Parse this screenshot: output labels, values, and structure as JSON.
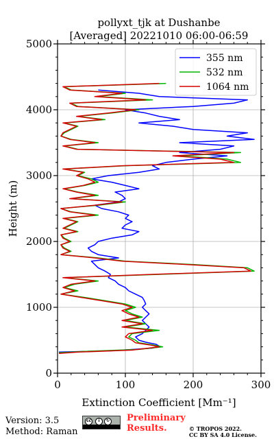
{
  "chart_data": {
    "type": "line",
    "title": "pollyxt_tjk at Dushanbe",
    "subtitle": "[Averaged] 20221010 06:00-06:59",
    "xlabel": "Extinction Coefficient [Mm⁻¹]",
    "ylabel": "Height (m)",
    "xlim": [
      0,
      300
    ],
    "ylim": [
      0,
      5000
    ],
    "xticks": [
      0,
      100,
      200,
      300
    ],
    "yticks": [
      0,
      1000,
      2000,
      3000,
      4000,
      5000
    ],
    "grid": true,
    "legend_position": "top-right",
    "series": [
      {
        "name": "355 nm",
        "color": "#0000ff",
        "y": [
          320,
          340,
          380,
          410,
          440,
          470,
          500,
          550,
          600,
          650,
          700,
          750,
          800,
          850,
          900,
          950,
          1000,
          1050,
          1100,
          1150,
          1200,
          1250,
          1300,
          1350,
          1400,
          1450,
          1500,
          1550,
          1600,
          1650,
          1700,
          1750,
          1800,
          1850,
          1900,
          1950,
          2000,
          2050,
          2100,
          2150,
          2200,
          2250,
          2300,
          2350,
          2400,
          2450,
          2500,
          2550,
          2600,
          2650,
          2700,
          2750,
          2800,
          2850,
          2900,
          2950,
          3000,
          3050,
          3100,
          3150,
          3200,
          3250,
          3300,
          3350,
          3400,
          3450,
          3500,
          3550,
          3600,
          3650,
          3700,
          3750,
          3800,
          3850,
          3900,
          3950,
          4000,
          4050,
          4100,
          4150,
          4200,
          4250,
          4300
        ],
        "x": [
          2,
          80,
          140,
          150,
          145,
          130,
          120,
          115,
          125,
          130,
          135,
          130,
          125,
          130,
          135,
          130,
          125,
          130,
          128,
          125,
          115,
          105,
          100,
          90,
          85,
          75,
          78,
          70,
          60,
          55,
          50,
          90,
          60,
          50,
          45,
          55,
          60,
          80,
          110,
          120,
          95,
          100,
          110,
          100,
          105,
          90,
          65,
          55,
          90,
          100,
          95,
          85,
          120,
          100,
          80,
          50,
          75,
          120,
          150,
          140,
          160,
          200,
          250,
          180,
          240,
          260,
          180,
          290,
          250,
          280,
          200,
          170,
          120,
          180,
          150,
          130,
          100,
          200,
          260,
          280,
          150,
          120,
          60
        ]
      },
      {
        "name": "532 nm",
        "color": "#00b400",
        "y": [
          310,
          330,
          360,
          400,
          430,
          460,
          500,
          550,
          600,
          650,
          700,
          750,
          800,
          850,
          900,
          950,
          1000,
          1050,
          1100,
          1150,
          1200,
          1250,
          1300,
          1350,
          1400,
          1450,
          1500,
          1550,
          1600,
          1650,
          1700,
          1750,
          1800,
          1850,
          1900,
          1950,
          2000,
          2050,
          2100,
          2150,
          2200,
          2250,
          2300,
          2350,
          2400,
          2450,
          2500,
          2550,
          2600,
          2650,
          2700,
          2750,
          2800,
          2850,
          2900,
          2950,
          3000,
          3050,
          3100,
          3150,
          3200,
          3250,
          3300,
          3350,
          3400,
          3450,
          3500,
          3550,
          3600,
          3650,
          3700,
          3750,
          3800,
          3850,
          3900,
          3950,
          4000,
          4050,
          4100,
          4150,
          4200,
          4250,
          4300,
          4350,
          4400
        ],
        "x": [
          2,
          40,
          120,
          155,
          140,
          120,
          115,
          105,
          110,
          150,
          100,
          130,
          100,
          125,
          110,
          100,
          115,
          100,
          70,
          40,
          5,
          30,
          10,
          25,
          60,
          10,
          150,
          290,
          280,
          200,
          100,
          60,
          5,
          20,
          10,
          5,
          20,
          10,
          5,
          30,
          10,
          20,
          30,
          10,
          60,
          20,
          5,
          60,
          100,
          20,
          60,
          30,
          10,
          40,
          60,
          50,
          30,
          40,
          10,
          100,
          270,
          250,
          180,
          270,
          30,
          10,
          60,
          20,
          5,
          10,
          20,
          30,
          10,
          70,
          30,
          80,
          120,
          30,
          20,
          140,
          60,
          100,
          20,
          10,
          160
        ]
      },
      {
        "name": "1064 nm",
        "color": "#d40000",
        "y": [
          300,
          320,
          350,
          400,
          430,
          460,
          500,
          550,
          600,
          650,
          700,
          750,
          800,
          850,
          900,
          950,
          1000,
          1050,
          1100,
          1150,
          1200,
          1250,
          1300,
          1350,
          1400,
          1450,
          1500,
          1550,
          1600,
          1650,
          1700,
          1750,
          1800,
          1850,
          1900,
          1950,
          2000,
          2050,
          2100,
          2150,
          2200,
          2250,
          2300,
          2350,
          2400,
          2450,
          2500,
          2550,
          2600,
          2650,
          2700,
          2750,
          2800,
          2850,
          2900,
          2950,
          3000,
          3050,
          3100,
          3150,
          3200,
          3250,
          3300,
          3350,
          3400,
          3450,
          3500,
          3550,
          3600,
          3650,
          3700,
          3750,
          3800,
          3850,
          3900,
          3950,
          4000,
          4050,
          4100,
          4150,
          4200,
          4250,
          4300,
          4350,
          4400
        ],
        "x": [
          2,
          30,
          110,
          150,
          135,
          115,
          110,
          100,
          105,
          140,
          95,
          125,
          95,
          120,
          105,
          95,
          110,
          95,
          65,
          35,
          5,
          25,
          8,
          20,
          55,
          8,
          140,
          285,
          275,
          190,
          95,
          55,
          5,
          18,
          8,
          5,
          18,
          8,
          5,
          28,
          8,
          18,
          28,
          8,
          55,
          18,
          5,
          55,
          95,
          18,
          55,
          28,
          8,
          38,
          55,
          45,
          28,
          38,
          8,
          95,
          260,
          240,
          170,
          260,
          28,
          8,
          55,
          18,
          5,
          8,
          18,
          28,
          8,
          65,
          28,
          75,
          115,
          28,
          18,
          130,
          55,
          95,
          18,
          8,
          150
        ]
      }
    ]
  },
  "footer": {
    "version": "Version: 3.5",
    "method": "Method: Raman",
    "preliminary_line1": "Preliminary",
    "preliminary_line2": "Results.",
    "copyright_line1": "© TROPOS 2022.",
    "copyright_line2": "CC BY SA 4.0 License.",
    "license_badge_text": "BY SA"
  }
}
